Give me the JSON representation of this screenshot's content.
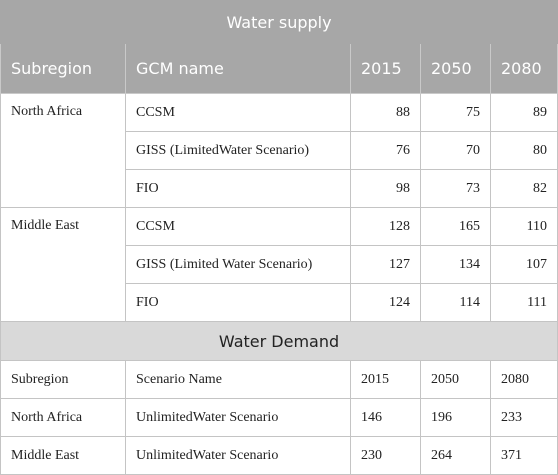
{
  "supply": {
    "title": "Water supply",
    "headers": [
      "Subregion",
      "GCM name",
      "2015",
      "2050",
      "2080"
    ],
    "groups": [
      {
        "region": "North Africa",
        "rows": [
          {
            "gcm": "CCSM",
            "v2015": "88",
            "v2050": "75",
            "v2080": "89"
          },
          {
            "gcm": "GISS (LimitedWater Scenario)",
            "v2015": "76",
            "v2050": "70",
            "v2080": "80"
          },
          {
            "gcm": "FIO",
            "v2015": "98",
            "v2050": "73",
            "v2080": "82"
          }
        ]
      },
      {
        "region": "Middle East",
        "rows": [
          {
            "gcm": "CCSM",
            "v2015": "128",
            "v2050": "165",
            "v2080": "110"
          },
          {
            "gcm": "GISS (Limited Water Scenario)",
            "v2015": "127",
            "v2050": "134",
            "v2080": "107"
          },
          {
            "gcm": "FIO",
            "v2015": "124",
            "v2050": "114",
            "v2080": "111"
          }
        ]
      }
    ]
  },
  "demand": {
    "title": "Water Demand",
    "headers": [
      "Subregion",
      "Scenario Name",
      "2015",
      "2050",
      "2080"
    ],
    "rows": [
      {
        "region": "North Africa",
        "scenario": "UnlimitedWater Scenario",
        "v2015": "146",
        "v2050": "196",
        "v2080": "233"
      },
      {
        "region": "Middle East",
        "scenario": "UnlimitedWater Scenario",
        "v2015": "230",
        "v2050": "264",
        "v2080": "371"
      }
    ]
  }
}
